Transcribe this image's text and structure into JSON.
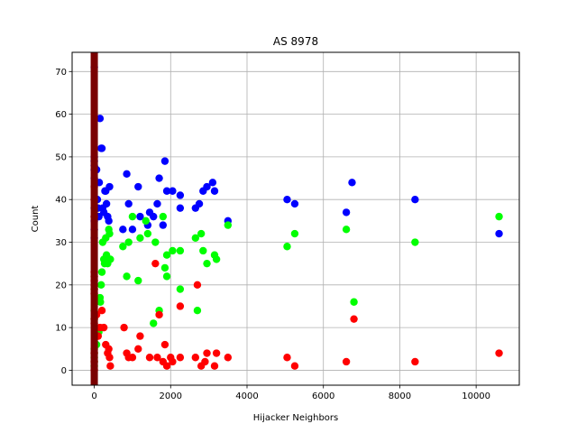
{
  "chart_data": {
    "type": "scatter",
    "title": "AS 8978",
    "xlabel": "Hijacker Neighbors",
    "ylabel": "Count",
    "xlim": [
      -580,
      11130
    ],
    "ylim": [
      -3.5,
      74.5
    ],
    "xticks": [
      0,
      2000,
      4000,
      6000,
      8000,
      10000
    ],
    "yticks": [
      0,
      10,
      20,
      30,
      40,
      50,
      60,
      70
    ],
    "grid": true,
    "vertical_band": {
      "x": 0,
      "color": "#7a0000"
    },
    "series": [
      {
        "color": "#0000ff",
        "points": [
          [
            0,
            71
          ],
          [
            0,
            50
          ],
          [
            0,
            49
          ],
          [
            0,
            48
          ],
          [
            0,
            47
          ],
          [
            0,
            45
          ],
          [
            0,
            40
          ],
          [
            0,
            38
          ],
          [
            0,
            36
          ],
          [
            0,
            35
          ],
          [
            0,
            33
          ],
          [
            0,
            31
          ],
          [
            60,
            47
          ],
          [
            80,
            40
          ],
          [
            100,
            38
          ],
          [
            120,
            36
          ],
          [
            130,
            44
          ],
          [
            150,
            59
          ],
          [
            180,
            52
          ],
          [
            200,
            52
          ],
          [
            220,
            38
          ],
          [
            250,
            37
          ],
          [
            280,
            42
          ],
          [
            300,
            42
          ],
          [
            320,
            39
          ],
          [
            350,
            36
          ],
          [
            380,
            35
          ],
          [
            400,
            43
          ],
          [
            750,
            33
          ],
          [
            850,
            46
          ],
          [
            900,
            39
          ],
          [
            1000,
            33
          ],
          [
            1150,
            43
          ],
          [
            1200,
            36
          ],
          [
            1400,
            34
          ],
          [
            1450,
            37
          ],
          [
            1550,
            36
          ],
          [
            1650,
            39
          ],
          [
            1700,
            45
          ],
          [
            1800,
            34
          ],
          [
            1850,
            49
          ],
          [
            1900,
            42
          ],
          [
            2050,
            42
          ],
          [
            2250,
            41
          ],
          [
            2250,
            38
          ],
          [
            2650,
            38
          ],
          [
            2750,
            39
          ],
          [
            2850,
            42
          ],
          [
            2950,
            43
          ],
          [
            3100,
            44
          ],
          [
            3150,
            42
          ],
          [
            3500,
            35
          ],
          [
            5050,
            40
          ],
          [
            5250,
            39
          ],
          [
            6600,
            37
          ],
          [
            6750,
            44
          ],
          [
            8400,
            40
          ],
          [
            10600,
            32
          ]
        ]
      },
      {
        "color": "#00ff00",
        "points": [
          [
            0,
            1
          ],
          [
            0,
            2
          ],
          [
            0,
            3
          ],
          [
            0,
            4
          ],
          [
            0,
            5
          ],
          [
            0,
            12
          ],
          [
            0,
            14
          ],
          [
            0,
            19
          ],
          [
            60,
            6
          ],
          [
            80,
            8
          ],
          [
            120,
            9
          ],
          [
            150,
            17
          ],
          [
            160,
            16
          ],
          [
            180,
            20
          ],
          [
            200,
            23
          ],
          [
            220,
            30
          ],
          [
            250,
            26
          ],
          [
            270,
            25
          ],
          [
            300,
            31
          ],
          [
            320,
            27
          ],
          [
            350,
            25
          ],
          [
            380,
            33
          ],
          [
            400,
            32
          ],
          [
            420,
            26
          ],
          [
            750,
            29
          ],
          [
            850,
            22
          ],
          [
            900,
            30
          ],
          [
            1000,
            36
          ],
          [
            1150,
            21
          ],
          [
            1200,
            31
          ],
          [
            1350,
            35
          ],
          [
            1400,
            32
          ],
          [
            1550,
            11
          ],
          [
            1600,
            30
          ],
          [
            1700,
            14
          ],
          [
            1800,
            36
          ],
          [
            1850,
            24
          ],
          [
            1900,
            22
          ],
          [
            1900,
            27
          ],
          [
            2050,
            28
          ],
          [
            2250,
            28
          ],
          [
            2250,
            19
          ],
          [
            2650,
            31
          ],
          [
            2700,
            14
          ],
          [
            2800,
            32
          ],
          [
            2850,
            28
          ],
          [
            2950,
            25
          ],
          [
            3150,
            27
          ],
          [
            3200,
            26
          ],
          [
            3500,
            34
          ],
          [
            5050,
            29
          ],
          [
            5250,
            32
          ],
          [
            6600,
            33
          ],
          [
            6800,
            16
          ],
          [
            8400,
            30
          ],
          [
            10600,
            36
          ]
        ]
      },
      {
        "color": "#ff0000",
        "points": [
          [
            0,
            0
          ],
          [
            0,
            2
          ],
          [
            0,
            4
          ],
          [
            0,
            11
          ],
          [
            0,
            12
          ],
          [
            0,
            18
          ],
          [
            0,
            19
          ],
          [
            0,
            20
          ],
          [
            0,
            21
          ],
          [
            0,
            22
          ],
          [
            0,
            23
          ],
          [
            0,
            36
          ],
          [
            0,
            40
          ],
          [
            0,
            43
          ],
          [
            60,
            13
          ],
          [
            100,
            8
          ],
          [
            150,
            10
          ],
          [
            200,
            14
          ],
          [
            250,
            10
          ],
          [
            300,
            6
          ],
          [
            350,
            4
          ],
          [
            380,
            5
          ],
          [
            400,
            3
          ],
          [
            420,
            1
          ],
          [
            780,
            10
          ],
          [
            850,
            4
          ],
          [
            900,
            3
          ],
          [
            1000,
            3
          ],
          [
            1150,
            5
          ],
          [
            1200,
            8
          ],
          [
            1450,
            3
          ],
          [
            1600,
            25
          ],
          [
            1650,
            3
          ],
          [
            1700,
            13
          ],
          [
            1800,
            2
          ],
          [
            1850,
            6
          ],
          [
            1900,
            1
          ],
          [
            2000,
            3
          ],
          [
            2050,
            2
          ],
          [
            2250,
            15
          ],
          [
            2250,
            3
          ],
          [
            2650,
            3
          ],
          [
            2700,
            20
          ],
          [
            2800,
            1
          ],
          [
            2900,
            2
          ],
          [
            2950,
            4
          ],
          [
            3150,
            1
          ],
          [
            3200,
            4
          ],
          [
            3500,
            3
          ],
          [
            5050,
            3
          ],
          [
            5250,
            1
          ],
          [
            6600,
            2
          ],
          [
            6800,
            12
          ],
          [
            8400,
            2
          ],
          [
            10600,
            4
          ]
        ]
      }
    ]
  }
}
